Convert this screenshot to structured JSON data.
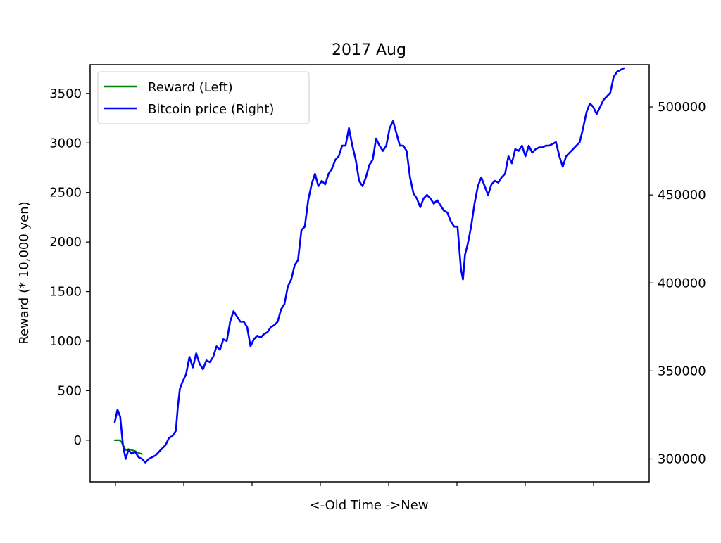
{
  "chart_data": {
    "type": "line",
    "title": "2017 Aug",
    "xlabel": "<-Old  Time  ->New",
    "ylabel": "Reward (* 10,000 yen)",
    "y_left_ticks": [
      0,
      500,
      1000,
      1500,
      2000,
      2500,
      3000,
      3500
    ],
    "y_left_tick_labels": [
      "0",
      "500",
      "1000",
      "1500",
      "2000",
      "2500",
      "3000",
      "3500"
    ],
    "ylim_left": [
      -420,
      3790
    ],
    "y_right_ticks": [
      300000,
      350000,
      400000,
      450000,
      500000
    ],
    "y_right_tick_labels": [
      "300000",
      "350000",
      "400000",
      "450000",
      "500000"
    ],
    "ylim_right": [
      287000,
      524000
    ],
    "x_ticks_count": 8,
    "legend_position": "upper left",
    "grid": false,
    "series": [
      {
        "name": "Reward (Left)",
        "axis": "left",
        "color": "#008000",
        "points": [
          [
            0,
            0
          ],
          [
            0.3,
            0
          ],
          [
            0.7,
            0
          ],
          [
            1.0,
            -20
          ],
          [
            1.3,
            -60
          ],
          [
            1.6,
            -100
          ],
          [
            2.0,
            -90
          ],
          [
            2.5,
            -100
          ],
          [
            3.0,
            -110
          ],
          [
            3.5,
            -130
          ],
          [
            4.0,
            -140
          ]
        ]
      },
      {
        "name": "Bitcoin price (Right)",
        "axis": "right",
        "color": "#0000ff",
        "points": [
          [
            0,
            321000
          ],
          [
            0.4,
            328000
          ],
          [
            0.8,
            324000
          ],
          [
            1.2,
            308000
          ],
          [
            1.6,
            300000
          ],
          [
            2.0,
            305000
          ],
          [
            2.5,
            303000
          ],
          [
            3.0,
            304000
          ],
          [
            3.5,
            301000
          ],
          [
            4.0,
            300000
          ],
          [
            4.5,
            298000
          ],
          [
            5.0,
            300000
          ],
          [
            5.5,
            301000
          ],
          [
            6.0,
            302000
          ],
          [
            6.5,
            304000
          ],
          [
            7.0,
            306000
          ],
          [
            7.5,
            308000
          ],
          [
            8.0,
            312000
          ],
          [
            8.5,
            313000
          ],
          [
            9.0,
            316000
          ],
          [
            9.3,
            330000
          ],
          [
            9.6,
            340000
          ],
          [
            10.0,
            344000
          ],
          [
            10.5,
            348000
          ],
          [
            11.0,
            358000
          ],
          [
            11.5,
            352000
          ],
          [
            12.0,
            360000
          ],
          [
            12.5,
            354000
          ],
          [
            13.0,
            351000
          ],
          [
            13.5,
            356000
          ],
          [
            14.0,
            355000
          ],
          [
            14.5,
            358000
          ],
          [
            15.0,
            364000
          ],
          [
            15.5,
            362000
          ],
          [
            16.0,
            368000
          ],
          [
            16.5,
            367000
          ],
          [
            17.0,
            378000
          ],
          [
            17.5,
            384000
          ],
          [
            18.0,
            381000
          ],
          [
            18.5,
            378000
          ],
          [
            19.0,
            378000
          ],
          [
            19.5,
            375000
          ],
          [
            20.0,
            364000
          ],
          [
            20.5,
            368000
          ],
          [
            21.0,
            370000
          ],
          [
            21.5,
            369000
          ],
          [
            22.0,
            371000
          ],
          [
            22.5,
            372000
          ],
          [
            23.0,
            375000
          ],
          [
            23.5,
            376000
          ],
          [
            24.0,
            378000
          ],
          [
            24.5,
            385000
          ],
          [
            25.0,
            388000
          ],
          [
            25.5,
            398000
          ],
          [
            26.0,
            402000
          ],
          [
            26.5,
            410000
          ],
          [
            27.0,
            413000
          ],
          [
            27.5,
            430000
          ],
          [
            28.0,
            432000
          ],
          [
            28.5,
            447000
          ],
          [
            29.0,
            456000
          ],
          [
            29.5,
            462000
          ],
          [
            30.0,
            455000
          ],
          [
            30.5,
            458000
          ],
          [
            31.0,
            456000
          ],
          [
            31.5,
            462000
          ],
          [
            32.0,
            465000
          ],
          [
            32.5,
            470000
          ],
          [
            33.0,
            472000
          ],
          [
            33.5,
            478000
          ],
          [
            34.0,
            478000
          ],
          [
            34.5,
            488000
          ],
          [
            35.0,
            478000
          ],
          [
            35.5,
            470000
          ],
          [
            36.0,
            458000
          ],
          [
            36.5,
            455000
          ],
          [
            37.0,
            460000
          ],
          [
            37.5,
            467000
          ],
          [
            38.0,
            470000
          ],
          [
            38.5,
            482000
          ],
          [
            39.0,
            478000
          ],
          [
            39.5,
            475000
          ],
          [
            40.0,
            478000
          ],
          [
            40.5,
            488000
          ],
          [
            41.0,
            492000
          ],
          [
            41.5,
            485000
          ],
          [
            42.0,
            478000
          ],
          [
            42.5,
            478000
          ],
          [
            43.0,
            475000
          ],
          [
            43.5,
            460000
          ],
          [
            44.0,
            451000
          ],
          [
            44.5,
            448000
          ],
          [
            45.0,
            443000
          ],
          [
            45.5,
            448000
          ],
          [
            46.0,
            450000
          ],
          [
            46.5,
            448000
          ],
          [
            47.0,
            445000
          ],
          [
            47.5,
            447000
          ],
          [
            48.0,
            444000
          ],
          [
            48.5,
            441000
          ],
          [
            49.0,
            440000
          ],
          [
            49.5,
            435000
          ],
          [
            50.0,
            432000
          ],
          [
            50.5,
            432000
          ],
          [
            51.0,
            408000
          ],
          [
            51.3,
            402000
          ],
          [
            51.6,
            416000
          ],
          [
            52.0,
            422000
          ],
          [
            52.5,
            432000
          ],
          [
            53.0,
            445000
          ],
          [
            53.5,
            455000
          ],
          [
            54.0,
            460000
          ],
          [
            54.5,
            455000
          ],
          [
            55.0,
            450000
          ],
          [
            55.5,
            456000
          ],
          [
            56.0,
            458000
          ],
          [
            56.5,
            457000
          ],
          [
            57.0,
            460000
          ],
          [
            57.5,
            462000
          ],
          [
            58.0,
            472000
          ],
          [
            58.5,
            468000
          ],
          [
            59.0,
            476000
          ],
          [
            59.5,
            475000
          ],
          [
            60.0,
            478000
          ],
          [
            60.5,
            472000
          ],
          [
            61.0,
            478000
          ],
          [
            61.5,
            474000
          ],
          [
            62.0,
            476000
          ],
          [
            62.5,
            477000
          ],
          [
            63.0,
            477000
          ],
          [
            63.5,
            478000
          ],
          [
            64.0,
            478000
          ],
          [
            64.5,
            479000
          ],
          [
            65.0,
            480000
          ],
          [
            65.5,
            472000
          ],
          [
            66.0,
            466000
          ],
          [
            66.5,
            472000
          ],
          [
            67.0,
            474000
          ],
          [
            67.5,
            476000
          ],
          [
            68.0,
            478000
          ],
          [
            68.5,
            480000
          ],
          [
            69.0,
            488000
          ],
          [
            69.5,
            497000
          ],
          [
            70.0,
            502000
          ],
          [
            70.5,
            500000
          ],
          [
            71.0,
            496000
          ],
          [
            71.5,
            500000
          ],
          [
            72.0,
            504000
          ],
          [
            72.5,
            506000
          ],
          [
            73.0,
            508000
          ],
          [
            73.5,
            517000
          ],
          [
            74.0,
            520000
          ],
          [
            74.5,
            521000
          ],
          [
            75.0,
            522000
          ]
        ]
      }
    ]
  }
}
